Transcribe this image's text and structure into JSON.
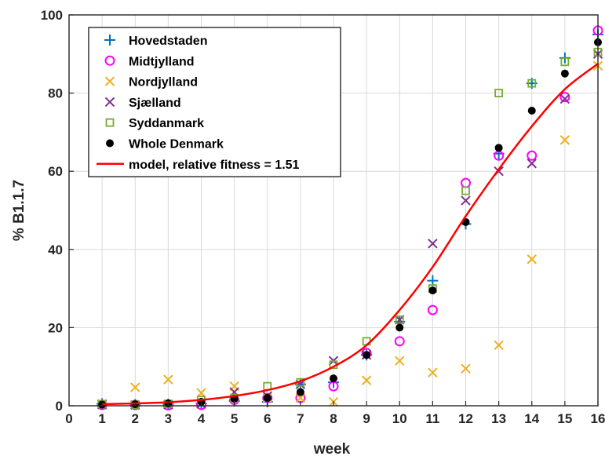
{
  "chart_data": {
    "type": "scatter",
    "xlabel": "week",
    "ylabel": "% B1.1.7",
    "xlim": [
      0,
      16
    ],
    "ylim": [
      0,
      100
    ],
    "xticks": [
      0,
      1,
      2,
      3,
      4,
      5,
      6,
      7,
      8,
      9,
      10,
      11,
      12,
      13,
      14,
      15,
      16
    ],
    "yticks": [
      0,
      20,
      40,
      60,
      80,
      100
    ],
    "grid": true,
    "legend_position": "top-left",
    "x": [
      1,
      2,
      3,
      4,
      5,
      6,
      7,
      8,
      9,
      10,
      11,
      12,
      13,
      14,
      15,
      16
    ],
    "series": [
      {
        "name": "Hovedstaden",
        "marker": "plus",
        "color": "#0072BD",
        "values": [
          0.5,
          0.3,
          0.4,
          0.6,
          1.2,
          1.0,
          5.5,
          6.0,
          13.0,
          21.5,
          32.0,
          46.5,
          64.5,
          82.5,
          89.0,
          95.0
        ]
      },
      {
        "name": "Midtjylland",
        "marker": "circle",
        "color": "#FF00FF",
        "values": [
          0.2,
          0.2,
          0.1,
          0.2,
          1.5,
          2.0,
          2.0,
          5.0,
          13.5,
          16.5,
          24.5,
          57.0,
          64.0,
          64.0,
          79.0,
          96.0
        ]
      },
      {
        "name": "Nordjylland",
        "marker": "x",
        "color": "#EDB120",
        "values": [
          0.5,
          4.7,
          6.7,
          3.3,
          5.0,
          2.0,
          2.0,
          1.0,
          6.5,
          11.5,
          8.5,
          9.5,
          15.5,
          37.5,
          68.0,
          87.0
        ]
      },
      {
        "name": "Sjælland",
        "marker": "x",
        "color": "#7E2F8E",
        "values": [
          0.3,
          0.2,
          0.3,
          0.5,
          3.5,
          2.5,
          5.5,
          11.5,
          13.0,
          22.0,
          41.5,
          52.5,
          60.0,
          62.0,
          78.5,
          90.0
        ]
      },
      {
        "name": "Syddanmark",
        "marker": "square",
        "color": "#77AC30",
        "values": [
          0.4,
          0.3,
          0.5,
          1.5,
          2.0,
          5.0,
          6.0,
          10.5,
          16.5,
          22.0,
          30.0,
          55.0,
          80.0,
          82.5,
          88.0,
          90.5
        ]
      },
      {
        "name": "Whole Denmark",
        "marker": "dot",
        "color": "#000000",
        "values": [
          0.3,
          0.4,
          0.6,
          1.0,
          1.8,
          2.0,
          3.5,
          7.0,
          13.0,
          20.0,
          29.5,
          47.0,
          66.0,
          75.5,
          85.0,
          93.0
        ]
      }
    ],
    "model": {
      "name": "model, relative fitness = 1.51",
      "color": "#FF0000",
      "x": [
        1,
        2,
        3,
        4,
        5,
        6,
        7,
        8,
        9,
        10,
        11,
        12,
        13,
        14,
        15,
        16
      ],
      "values": [
        0.4,
        0.6,
        0.9,
        1.5,
        2.5,
        4.0,
        6.3,
        10.0,
        15.5,
        24.5,
        35.5,
        48.5,
        60.5,
        71.5,
        81.0,
        87.5
      ]
    }
  }
}
